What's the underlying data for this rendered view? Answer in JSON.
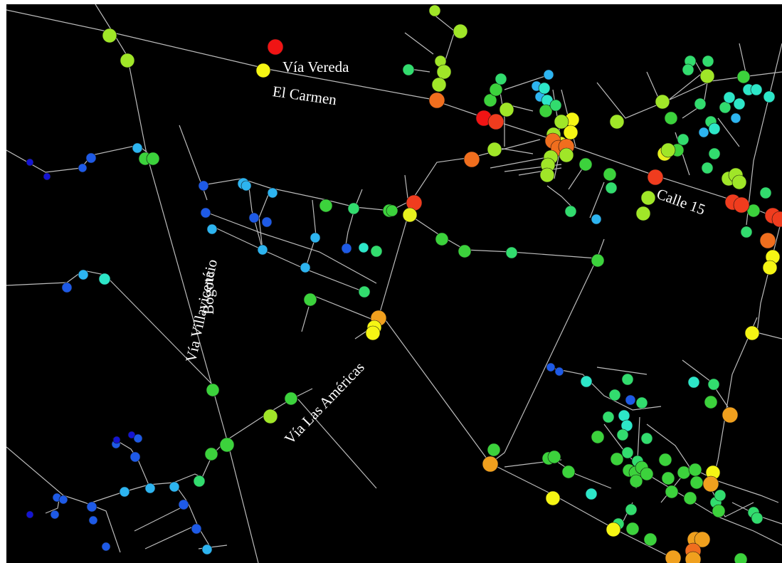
{
  "map": {
    "background": "#000000",
    "line_color": "#bcbcbc",
    "labels": {
      "via_vereda": "Vía Vereda",
      "el_carmen": "El Carmen",
      "calle_15": "Calle 15",
      "via_villavicencio": "Vía Villavicencio",
      "bogota": "Bogotá",
      "via_las_americas": "Vía Las Américas"
    },
    "color_scale": [
      "#1414d2",
      "#1e5ae6",
      "#2db4f0",
      "#2de6c8",
      "#32dc6e",
      "#3cd23c",
      "#a0e628",
      "#e6f01e",
      "#f5f514",
      "#f0a01e",
      "#f06e1e",
      "#f03c1e",
      "#f01414"
    ]
  }
}
